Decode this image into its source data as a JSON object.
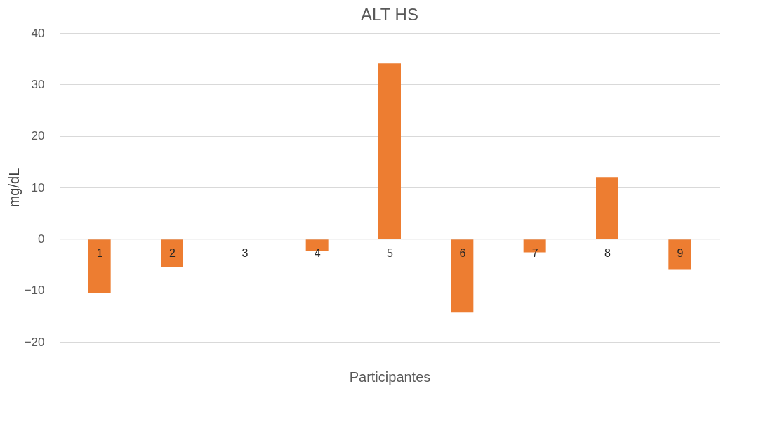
{
  "chart_data": {
    "type": "bar",
    "title": "ALT HS",
    "xlabel": "Participantes",
    "ylabel": "mg/dL",
    "categories": [
      "1",
      "2",
      "3",
      "4",
      "5",
      "6",
      "7",
      "8",
      "9"
    ],
    "values": [
      -10.6,
      -5.5,
      0,
      -2.3,
      34.1,
      -14.3,
      -2.6,
      12.0,
      -5.9
    ],
    "color": "#ed7d31",
    "ylim": [
      -20,
      40
    ],
    "yticks": [
      -20,
      -10,
      0,
      10,
      20,
      30,
      40
    ],
    "grid": "y"
  }
}
